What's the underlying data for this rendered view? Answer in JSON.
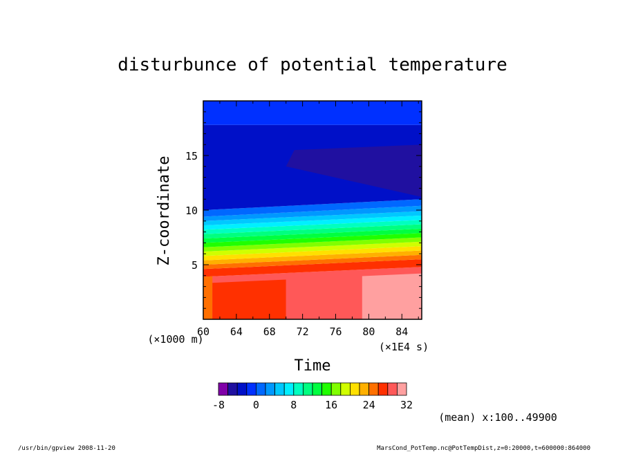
{
  "chart_data": {
    "type": "heatmap",
    "title": "disturbunce of potential temperature",
    "xlabel": "Time",
    "ylabel": "Z-coordinate",
    "x_unit": "(×1E4 s)",
    "y_unit": "(×1000 m)",
    "x_ticks": [
      "60",
      "64",
      "68",
      "72",
      "76",
      "80",
      "84"
    ],
    "y_ticks": [
      "5",
      "10",
      "15"
    ],
    "xlim": [
      60,
      86.4
    ],
    "ylim": [
      0,
      20
    ],
    "colorbar": {
      "levels": [
        -8,
        -6,
        -4,
        -2,
        0,
        2,
        4,
        6,
        8,
        10,
        12,
        14,
        16,
        18,
        20,
        22,
        24,
        26,
        28,
        30,
        32
      ],
      "tick_labels": [
        "-8",
        "0",
        "8",
        "16",
        "24",
        "32"
      ],
      "colors": [
        "#8000a8",
        "#2010a0",
        "#0010c8",
        "#0030ff",
        "#0068ff",
        "#0098ff",
        "#00c8ff",
        "#00f0ff",
        "#00ffc0",
        "#00ff80",
        "#00ff40",
        "#20ff00",
        "#80ff00",
        "#d0ff00",
        "#ffe000",
        "#ffb000",
        "#ff7000",
        "#ff3000",
        "#ff5858",
        "#ffa0a0"
      ]
    },
    "bands_z": [
      {
        "z_bottom_left": 0,
        "z_bottom_right": 0,
        "z_top_left": 3.9,
        "z_top_right": 4.8,
        "level": 28
      },
      {
        "z_bottom_left": 3.9,
        "z_bottom_right": 4.8,
        "z_top_left": 4.6,
        "z_top_right": 5.5,
        "level": 26
      },
      {
        "z_bottom_left": 4.6,
        "z_bottom_right": 5.5,
        "z_top_left": 5.0,
        "z_top_right": 5.9,
        "level": 24
      },
      {
        "z_bottom_left": 5.0,
        "z_bottom_right": 5.9,
        "z_top_left": 5.4,
        "z_top_right": 6.3,
        "level": 22
      },
      {
        "z_bottom_left": 5.4,
        "z_bottom_right": 6.3,
        "z_top_left": 5.8,
        "z_top_right": 6.7,
        "level": 20
      },
      {
        "z_bottom_left": 5.8,
        "z_bottom_right": 6.7,
        "z_top_left": 6.2,
        "z_top_right": 7.1,
        "level": 18
      },
      {
        "z_bottom_left": 6.2,
        "z_bottom_right": 7.1,
        "z_top_left": 6.6,
        "z_top_right": 7.5,
        "level": 16
      },
      {
        "z_bottom_left": 6.6,
        "z_bottom_right": 7.5,
        "z_top_left": 7.0,
        "z_top_right": 7.9,
        "level": 14
      },
      {
        "z_bottom_left": 7.0,
        "z_bottom_right": 7.9,
        "z_top_left": 7.4,
        "z_top_right": 8.3,
        "level": 12
      },
      {
        "z_bottom_left": 7.4,
        "z_bottom_right": 8.3,
        "z_top_left": 7.8,
        "z_top_right": 8.7,
        "level": 10
      },
      {
        "z_bottom_left": 7.8,
        "z_bottom_right": 8.7,
        "z_top_left": 8.2,
        "z_top_right": 9.1,
        "level": 8
      },
      {
        "z_bottom_left": 8.2,
        "z_bottom_right": 9.1,
        "z_top_left": 8.6,
        "z_top_right": 9.5,
        "level": 6
      },
      {
        "z_bottom_left": 8.6,
        "z_bottom_right": 9.5,
        "z_top_left": 9.0,
        "z_top_right": 9.9,
        "level": 4
      },
      {
        "z_bottom_left": 9.0,
        "z_bottom_right": 9.9,
        "z_top_left": 9.4,
        "z_top_right": 10.4,
        "level": 2
      },
      {
        "z_bottom_left": 9.4,
        "z_bottom_right": 10.4,
        "z_top_left": 10.0,
        "z_top_right": 11.0,
        "level": 0
      },
      {
        "z_bottom_left": 10.0,
        "z_bottom_right": 11.0,
        "z_top_left": 17.8,
        "z_top_right": 17.8,
        "level": -4
      },
      {
        "z_bottom_left": 17.8,
        "z_bottom_right": 17.8,
        "z_top_left": 20,
        "z_top_right": 20,
        "level": -2
      }
    ],
    "surface_regions": [
      {
        "x_start": 60,
        "x_end": 61.1,
        "level": 26
      },
      {
        "x_start": 61.1,
        "x_end": 70.0,
        "level": 28
      },
      {
        "x_start": 70.0,
        "x_end": 79.2,
        "level": 30
      },
      {
        "x_start": 79.2,
        "x_end": 86.4,
        "level": 32
      }
    ],
    "cold_region": {
      "x_start": 70,
      "x_end": 86.4,
      "z_bottom_left": 14.0,
      "z_bottom_right": 11.2,
      "z_top_left": 15.5,
      "z_top_right": 16.0,
      "level": -6
    }
  },
  "annotation": "(mean) x:100..49900",
  "footer": {
    "left": "/usr/bin/gpview   2008-11-20",
    "right": "MarsCond_PotTemp.nc@PotTempDist,z=0:20000,t=600000:864000"
  }
}
